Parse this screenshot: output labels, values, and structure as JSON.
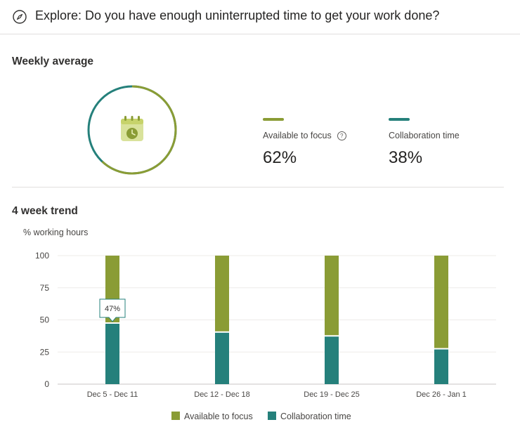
{
  "header": {
    "title": "Explore: Do you have enough uninterrupted time to get your work done?",
    "icon": "compass-icon"
  },
  "weekly": {
    "title": "Weekly average",
    "focus_label": "Available to focus",
    "focus_value": "62%",
    "collab_label": "Collaboration time",
    "collab_value": "38%",
    "focus_fraction": 0.62,
    "icon": "calendar-clock-icon"
  },
  "colors": {
    "focus": "#8a9c35",
    "collab": "#25807b"
  },
  "trend": {
    "title": "4 week trend",
    "ylabel": "% working hours",
    "tooltip": "47%"
  },
  "legend": {
    "focus": "Available to focus",
    "collab": "Collaboration time"
  },
  "chart_data": {
    "type": "bar",
    "stacked": true,
    "categories": [
      "Dec 5 - Dec 11",
      "Dec 12 - Dec 18",
      "Dec 19 - Dec 25",
      "Dec 26 - Jan 1"
    ],
    "series": [
      {
        "name": "Collaboration time",
        "values": [
          47,
          40,
          37,
          27
        ]
      },
      {
        "name": "Available to focus",
        "values": [
          53,
          60,
          63,
          73
        ]
      }
    ],
    "ylabel": "% working hours",
    "ylim": [
      0,
      100
    ],
    "yticks": [
      "0",
      "25",
      "50",
      "75",
      "100"
    ],
    "grid": true,
    "legend": "bottom"
  }
}
